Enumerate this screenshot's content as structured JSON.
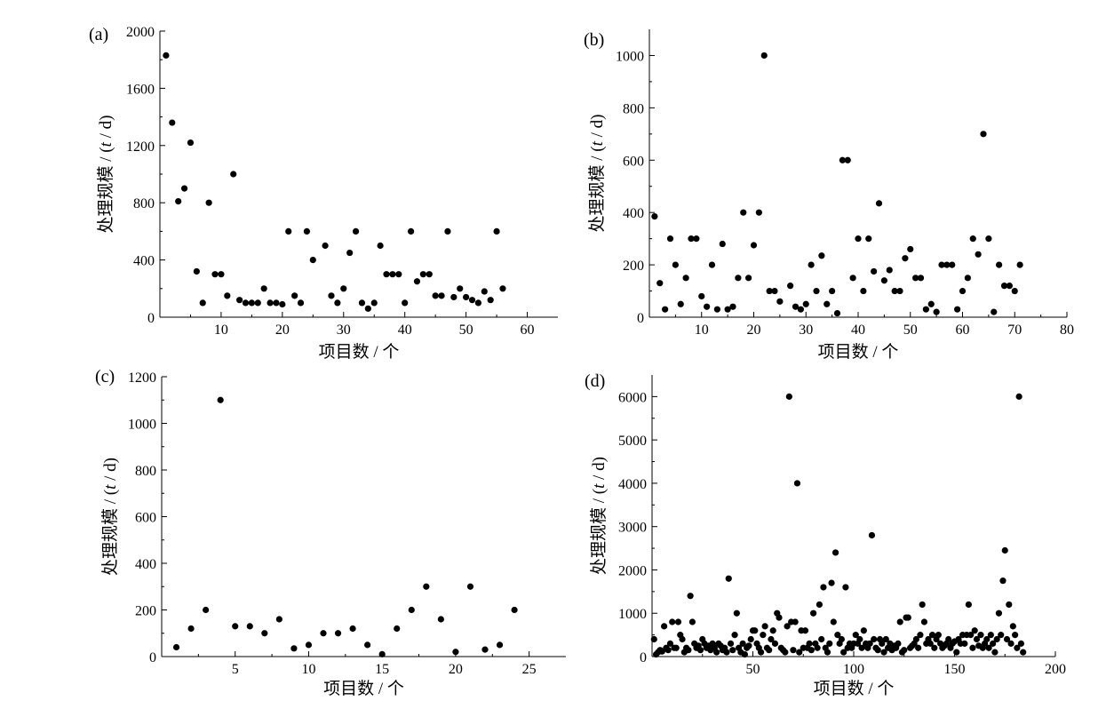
{
  "chart_data": [
    {
      "type": "scatter",
      "panel_label": "(a)",
      "xlabel": "项目数 / 个",
      "ylabel_prefix": "处理规模 / (",
      "ylabel_var": "t",
      "ylabel_suffix": " / d)",
      "xlim": [
        0,
        65
      ],
      "ylim": [
        0,
        2000
      ],
      "xticks": [
        10,
        20,
        30,
        40,
        50,
        60
      ],
      "yticks": [
        0,
        400,
        800,
        1200,
        1600,
        2000
      ],
      "points": [
        [
          1,
          1830
        ],
        [
          2,
          1360
        ],
        [
          3,
          810
        ],
        [
          4,
          900
        ],
        [
          5,
          1220
        ],
        [
          6,
          320
        ],
        [
          7,
          100
        ],
        [
          8,
          800
        ],
        [
          9,
          300
        ],
        [
          10,
          300
        ],
        [
          11,
          150
        ],
        [
          12,
          1000
        ],
        [
          13,
          120
        ],
        [
          14,
          100
        ],
        [
          15,
          100
        ],
        [
          16,
          100
        ],
        [
          17,
          200
        ],
        [
          18,
          100
        ],
        [
          19,
          100
        ],
        [
          20,
          90
        ],
        [
          21,
          600
        ],
        [
          22,
          150
        ],
        [
          23,
          100
        ],
        [
          24,
          600
        ],
        [
          25,
          400
        ],
        [
          27,
          500
        ],
        [
          28,
          150
        ],
        [
          29,
          100
        ],
        [
          30,
          200
        ],
        [
          31,
          450
        ],
        [
          32,
          600
        ],
        [
          33,
          100
        ],
        [
          34,
          60
        ],
        [
          35,
          100
        ],
        [
          36,
          500
        ],
        [
          37,
          300
        ],
        [
          38,
          300
        ],
        [
          39,
          300
        ],
        [
          40,
          100
        ],
        [
          41,
          600
        ],
        [
          42,
          250
        ],
        [
          43,
          300
        ],
        [
          44,
          300
        ],
        [
          45,
          150
        ],
        [
          46,
          150
        ],
        [
          47,
          600
        ],
        [
          48,
          140
        ],
        [
          49,
          200
        ],
        [
          50,
          140
        ],
        [
          51,
          120
        ],
        [
          52,
          100
        ],
        [
          53,
          180
        ],
        [
          54,
          120
        ],
        [
          55,
          600
        ],
        [
          56,
          200
        ]
      ]
    },
    {
      "type": "scatter",
      "panel_label": "(b)",
      "xlabel": "项目数 / 个",
      "ylabel_prefix": "处理规模 / (",
      "ylabel_var": "t",
      "ylabel_suffix": " / d)",
      "xlim": [
        0,
        80
      ],
      "ylim": [
        0,
        1100
      ],
      "xticks": [
        10,
        20,
        30,
        40,
        50,
        60,
        70,
        80
      ],
      "yticks": [
        0,
        200,
        400,
        600,
        800,
        1000
      ],
      "points": [
        [
          1,
          385
        ],
        [
          2,
          130
        ],
        [
          3,
          30
        ],
        [
          4,
          300
        ],
        [
          5,
          200
        ],
        [
          6,
          50
        ],
        [
          7,
          150
        ],
        [
          8,
          300
        ],
        [
          9,
          300
        ],
        [
          10,
          80
        ],
        [
          11,
          40
        ],
        [
          12,
          200
        ],
        [
          13,
          30
        ],
        [
          14,
          280
        ],
        [
          15,
          30
        ],
        [
          16,
          40
        ],
        [
          17,
          150
        ],
        [
          18,
          400
        ],
        [
          19,
          150
        ],
        [
          20,
          275
        ],
        [
          21,
          400
        ],
        [
          22,
          1000
        ],
        [
          23,
          100
        ],
        [
          24,
          100
        ],
        [
          25,
          60
        ],
        [
          27,
          120
        ],
        [
          28,
          40
        ],
        [
          29,
          30
        ],
        [
          30,
          50
        ],
        [
          31,
          200
        ],
        [
          32,
          100
        ],
        [
          33,
          235
        ],
        [
          34,
          50
        ],
        [
          35,
          100
        ],
        [
          36,
          15
        ],
        [
          37,
          600
        ],
        [
          38,
          600
        ],
        [
          39,
          150
        ],
        [
          40,
          300
        ],
        [
          41,
          100
        ],
        [
          42,
          300
        ],
        [
          43,
          175
        ],
        [
          44,
          435
        ],
        [
          45,
          140
        ],
        [
          46,
          180
        ],
        [
          47,
          100
        ],
        [
          48,
          100
        ],
        [
          49,
          225
        ],
        [
          50,
          260
        ],
        [
          51,
          150
        ],
        [
          52,
          150
        ],
        [
          53,
          30
        ],
        [
          54,
          50
        ],
        [
          55,
          20
        ],
        [
          56,
          200
        ],
        [
          57,
          200
        ],
        [
          58,
          200
        ],
        [
          59,
          30
        ],
        [
          60,
          100
        ],
        [
          61,
          150
        ],
        [
          62,
          300
        ],
        [
          63,
          240
        ],
        [
          64,
          700
        ],
        [
          65,
          300
        ],
        [
          66,
          20
        ],
        [
          67,
          200
        ],
        [
          68,
          120
        ],
        [
          69,
          120
        ],
        [
          70,
          100
        ],
        [
          71,
          200
        ]
      ]
    },
    {
      "type": "scatter",
      "panel_label": "(c)",
      "xlabel": "项目数 / 个",
      "ylabel_prefix": "处理规模 / (",
      "ylabel_var": "t",
      "ylabel_suffix": " / d)",
      "xlim": [
        0,
        27.5
      ],
      "ylim": [
        0,
        1200
      ],
      "xticks": [
        5,
        10,
        15,
        20,
        25
      ],
      "yticks": [
        0,
        200,
        400,
        600,
        800,
        1000,
        1200
      ],
      "points": [
        [
          1,
          40
        ],
        [
          2,
          120
        ],
        [
          3,
          200
        ],
        [
          4,
          1100
        ],
        [
          5,
          130
        ],
        [
          6,
          130
        ],
        [
          7,
          100
        ],
        [
          8,
          160
        ],
        [
          9,
          35
        ],
        [
          10,
          50
        ],
        [
          11,
          100
        ],
        [
          12,
          100
        ],
        [
          13,
          120
        ],
        [
          14,
          50
        ],
        [
          15,
          10
        ],
        [
          16,
          120
        ],
        [
          17,
          200
        ],
        [
          18,
          300
        ],
        [
          19,
          160
        ],
        [
          20,
          20
        ],
        [
          21,
          300
        ],
        [
          22,
          30
        ],
        [
          23,
          50
        ],
        [
          24,
          200
        ]
      ]
    },
    {
      "type": "scatter",
      "panel_label": "(d)",
      "xlabel": "项目数 / 个",
      "ylabel_prefix": "处理规模 / (",
      "ylabel_var": "t",
      "ylabel_suffix": " / d)",
      "xlim": [
        0,
        200
      ],
      "ylim": [
        0,
        6500
      ],
      "xticks": [
        50,
        100,
        150,
        200
      ],
      "yticks": [
        0,
        1000,
        2000,
        3000,
        4000,
        5000,
        6000
      ],
      "points": [
        [
          1,
          400
        ],
        [
          2,
          50
        ],
        [
          3,
          100
        ],
        [
          4,
          150
        ],
        [
          5,
          120
        ],
        [
          6,
          700
        ],
        [
          7,
          200
        ],
        [
          8,
          150
        ],
        [
          9,
          300
        ],
        [
          10,
          800
        ],
        [
          11,
          200
        ],
        [
          12,
          200
        ],
        [
          13,
          800
        ],
        [
          14,
          500
        ],
        [
          15,
          400
        ],
        [
          16,
          100
        ],
        [
          17,
          200
        ],
        [
          18,
          150
        ],
        [
          19,
          1400
        ],
        [
          20,
          800
        ],
        [
          21,
          300
        ],
        [
          22,
          200
        ],
        [
          23,
          250
        ],
        [
          24,
          150
        ],
        [
          25,
          400
        ],
        [
          26,
          300
        ],
        [
          27,
          200
        ],
        [
          28,
          250
        ],
        [
          29,
          150
        ],
        [
          30,
          300
        ],
        [
          31,
          200
        ],
        [
          32,
          100
        ],
        [
          33,
          300
        ],
        [
          34,
          250
        ],
        [
          35,
          150
        ],
        [
          36,
          200
        ],
        [
          37,
          100
        ],
        [
          38,
          1800
        ],
        [
          39,
          300
        ],
        [
          40,
          150
        ],
        [
          41,
          500
        ],
        [
          42,
          1000
        ],
        [
          43,
          200
        ],
        [
          44,
          100
        ],
        [
          45,
          300
        ],
        [
          46,
          50
        ],
        [
          47,
          200
        ],
        [
          48,
          250
        ],
        [
          49,
          400
        ],
        [
          50,
          600
        ],
        [
          51,
          600
        ],
        [
          52,
          300
        ],
        [
          53,
          200
        ],
        [
          54,
          100
        ],
        [
          55,
          500
        ],
        [
          56,
          700
        ],
        [
          57,
          200
        ],
        [
          58,
          150
        ],
        [
          59,
          400
        ],
        [
          60,
          600
        ],
        [
          61,
          300
        ],
        [
          62,
          1000
        ],
        [
          63,
          900
        ],
        [
          64,
          200
        ],
        [
          65,
          150
        ],
        [
          66,
          100
        ],
        [
          67,
          700
        ],
        [
          68,
          6000
        ],
        [
          69,
          800
        ],
        [
          70,
          150
        ],
        [
          71,
          800
        ],
        [
          72,
          4000
        ],
        [
          73,
          100
        ],
        [
          74,
          600
        ],
        [
          75,
          200
        ],
        [
          76,
          600
        ],
        [
          77,
          200
        ],
        [
          78,
          300
        ],
        [
          79,
          150
        ],
        [
          80,
          1000
        ],
        [
          81,
          300
        ],
        [
          82,
          200
        ],
        [
          83,
          1200
        ],
        [
          84,
          400
        ],
        [
          85,
          1600
        ],
        [
          86,
          200
        ],
        [
          87,
          100
        ],
        [
          88,
          300
        ],
        [
          89,
          1700
        ],
        [
          90,
          800
        ],
        [
          91,
          2400
        ],
        [
          92,
          500
        ],
        [
          93,
          300
        ],
        [
          94,
          400
        ],
        [
          95,
          100
        ],
        [
          96,
          1600
        ],
        [
          97,
          200
        ],
        [
          98,
          300
        ],
        [
          99,
          200
        ],
        [
          100,
          300
        ],
        [
          101,
          500
        ],
        [
          102,
          300
        ],
        [
          103,
          400
        ],
        [
          104,
          200
        ],
        [
          105,
          600
        ],
        [
          106,
          300
        ],
        [
          107,
          200
        ],
        [
          108,
          300
        ],
        [
          109,
          2800
        ],
        [
          110,
          400
        ],
        [
          111,
          200
        ],
        [
          112,
          150
        ],
        [
          113,
          400
        ],
        [
          114,
          300
        ],
        [
          115,
          100
        ],
        [
          116,
          400
        ],
        [
          117,
          200
        ],
        [
          118,
          300
        ],
        [
          119,
          150
        ],
        [
          120,
          250
        ],
        [
          121,
          200
        ],
        [
          122,
          300
        ],
        [
          123,
          800
        ],
        [
          124,
          100
        ],
        [
          125,
          150
        ],
        [
          126,
          900
        ],
        [
          127,
          900
        ],
        [
          128,
          200
        ],
        [
          129,
          250
        ],
        [
          130,
          300
        ],
        [
          131,
          400
        ],
        [
          132,
          200
        ],
        [
          133,
          500
        ],
        [
          134,
          1200
        ],
        [
          135,
          800
        ],
        [
          136,
          300
        ],
        [
          137,
          400
        ],
        [
          138,
          300
        ],
        [
          139,
          500
        ],
        [
          140,
          200
        ],
        [
          141,
          400
        ],
        [
          142,
          500
        ],
        [
          143,
          300
        ],
        [
          144,
          200
        ],
        [
          145,
          250
        ],
        [
          146,
          300
        ],
        [
          147,
          400
        ],
        [
          148,
          200
        ],
        [
          149,
          300
        ],
        [
          150,
          350
        ],
        [
          151,
          100
        ],
        [
          152,
          400
        ],
        [
          153,
          300
        ],
        [
          154,
          500
        ],
        [
          155,
          300
        ],
        [
          156,
          500
        ],
        [
          157,
          1200
        ],
        [
          158,
          500
        ],
        [
          159,
          200
        ],
        [
          160,
          600
        ],
        [
          161,
          400
        ],
        [
          162,
          250
        ],
        [
          163,
          500
        ],
        [
          164,
          200
        ],
        [
          165,
          300
        ],
        [
          166,
          400
        ],
        [
          167,
          200
        ],
        [
          168,
          500
        ],
        [
          169,
          300
        ],
        [
          170,
          100
        ],
        [
          171,
          400
        ],
        [
          172,
          1000
        ],
        [
          173,
          500
        ],
        [
          174,
          1750
        ],
        [
          175,
          2450
        ],
        [
          176,
          400
        ],
        [
          177,
          1200
        ],
        [
          178,
          300
        ],
        [
          179,
          700
        ],
        [
          180,
          500
        ],
        [
          181,
          200
        ],
        [
          182,
          6000
        ],
        [
          183,
          300
        ],
        [
          184,
          100
        ]
      ]
    }
  ]
}
